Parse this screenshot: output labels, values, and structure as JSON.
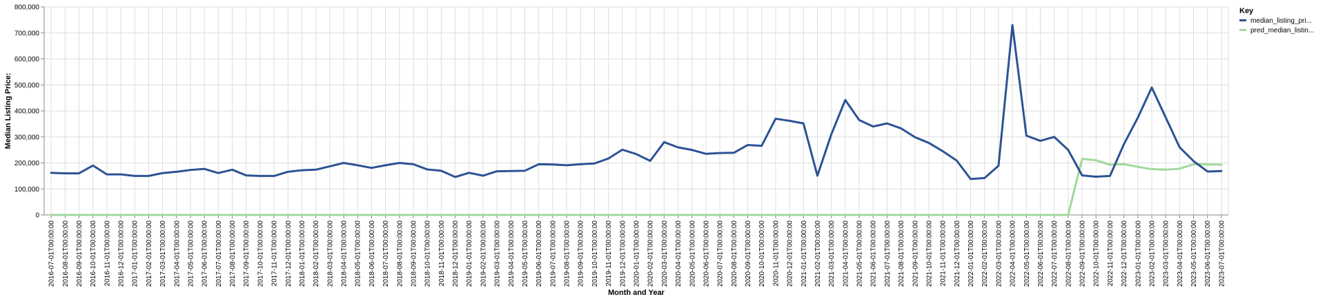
{
  "chart_data": {
    "type": "line",
    "xlabel": "Month and Year",
    "ylabel": "Median Listing Price:",
    "ylim": [
      0,
      800000
    ],
    "y_ticks": [
      "0",
      "100,000",
      "200,000",
      "300,000",
      "400,000",
      "500,000",
      "600,000",
      "700,000",
      "800,000"
    ],
    "grid": true,
    "legend": {
      "title": "Key",
      "placement": "top-right"
    },
    "x": [
      "2016-07-01T00:00:00",
      "2016-08-01T00:00:00",
      "2016-09-01T00:00:00",
      "2016-10-01T00:00:00",
      "2016-11-01T00:00:00",
      "2016-12-01T00:00:00",
      "2017-01-01T00:00:00",
      "2017-02-01T00:00:00",
      "2017-03-01T00:00:00",
      "2017-04-01T00:00:00",
      "2017-05-01T00:00:00",
      "2017-06-01T00:00:00",
      "2017-07-01T00:00:00",
      "2017-08-01T00:00:00",
      "2017-09-01T00:00:00",
      "2017-10-01T00:00:00",
      "2017-11-01T00:00:00",
      "2017-12-01T00:00:00",
      "2018-01-01T00:00:00",
      "2018-02-01T00:00:00",
      "2018-03-01T00:00:00",
      "2018-04-01T00:00:00",
      "2018-05-01T00:00:00",
      "2018-06-01T00:00:00",
      "2018-07-01T00:00:00",
      "2018-08-01T00:00:00",
      "2018-09-01T00:00:00",
      "2018-10-01T00:00:00",
      "2018-11-01T00:00:00",
      "2018-12-01T00:00:00",
      "2019-01-01T00:00:00",
      "2019-02-01T00:00:00",
      "2019-03-01T00:00:00",
      "2019-04-01T00:00:00",
      "2019-05-01T00:00:00",
      "2019-06-01T00:00:00",
      "2019-07-01T00:00:00",
      "2019-08-01T00:00:00",
      "2019-09-01T00:00:00",
      "2019-10-01T00:00:00",
      "2019-11-01T00:00:00",
      "2019-12-01T00:00:00",
      "2020-01-01T00:00:00",
      "2020-02-01T00:00:00",
      "2020-03-01T00:00:00",
      "2020-04-01T00:00:00",
      "2020-05-01T00:00:00",
      "2020-06-01T00:00:00",
      "2020-07-01T00:00:00",
      "2020-08-01T00:00:00",
      "2020-09-01T00:00:00",
      "2020-10-01T00:00:00",
      "2020-11-01T00:00:00",
      "2020-12-01T00:00:00",
      "2021-01-01T00:00:00",
      "2021-02-01T00:00:00",
      "2021-03-01T00:00:00",
      "2021-04-01T00:00:00",
      "2021-05-01T00:00:00",
      "2021-06-01T00:00:00",
      "2021-07-01T00:00:00",
      "2021-08-01T00:00:00",
      "2021-09-01T00:00:00",
      "2021-10-01T00:00:00",
      "2021-11-01T00:00:00",
      "2021-12-01T00:00:00",
      "2022-01-01T00:00:00",
      "2022-02-01T00:00:00",
      "2022-03-01T00:00:00",
      "2022-04-01T00:00:00",
      "2022-05-01T00:00:00",
      "2022-06-01T00:00:00",
      "2022-07-01T00:00:00",
      "2022-08-01T00:00:00",
      "2022-09-01T00:00:00",
      "2022-10-01T00:00:00",
      "2022-11-01T00:00:00",
      "2022-12-01T00:00:00",
      "2023-01-01T00:00:00",
      "2023-02-01T00:00:00",
      "2023-03-01T00:00:00",
      "2023-04-01T00:00:00",
      "2023-05-01T00:00:00",
      "2023-06-01T00:00:00",
      "2023-07-01T00:00:00"
    ],
    "series": [
      {
        "name": "median_listing_pri...",
        "color": "#2c5294",
        "values": [
          162000,
          160000,
          160000,
          190000,
          156000,
          156000,
          150000,
          150000,
          161000,
          166000,
          173000,
          177000,
          161000,
          174000,
          152000,
          150000,
          150000,
          166000,
          172000,
          174000,
          187000,
          200000,
          191000,
          181000,
          191000,
          200000,
          195000,
          175000,
          170000,
          146000,
          162000,
          151000,
          168000,
          169000,
          170000,
          195000,
          194000,
          191000,
          195000,
          198000,
          217000,
          251000,
          234000,
          208000,
          280000,
          260000,
          250000,
          235000,
          238000,
          239000,
          269000,
          266000,
          370000,
          362000,
          352000,
          151000,
          310000,
          442000,
          365000,
          340000,
          352000,
          333000,
          299000,
          277000,
          245000,
          209000,
          138000,
          142000,
          189000,
          730000,
          305000,
          285000,
          300000,
          250000,
          152000,
          147000,
          150000,
          272000,
          374000,
          490000,
          375000,
          260000,
          207000,
          167000,
          169000
        ]
      },
      {
        "name": "pred_median_listin...",
        "color": "#9fd99b",
        "values": [
          0,
          0,
          0,
          0,
          0,
          0,
          0,
          0,
          0,
          0,
          0,
          0,
          0,
          0,
          0,
          0,
          0,
          0,
          0,
          0,
          0,
          0,
          0,
          0,
          0,
          0,
          0,
          0,
          0,
          0,
          0,
          0,
          0,
          0,
          0,
          0,
          0,
          0,
          0,
          0,
          0,
          0,
          0,
          0,
          0,
          0,
          0,
          0,
          0,
          0,
          0,
          0,
          0,
          0,
          0,
          0,
          0,
          0,
          0,
          0,
          0,
          0,
          0,
          0,
          0,
          0,
          0,
          0,
          0,
          0,
          0,
          0,
          0,
          0,
          216000,
          210000,
          193000,
          195000,
          185000,
          176000,
          174000,
          178000,
          195000,
          194000,
          193000
        ]
      }
    ]
  }
}
